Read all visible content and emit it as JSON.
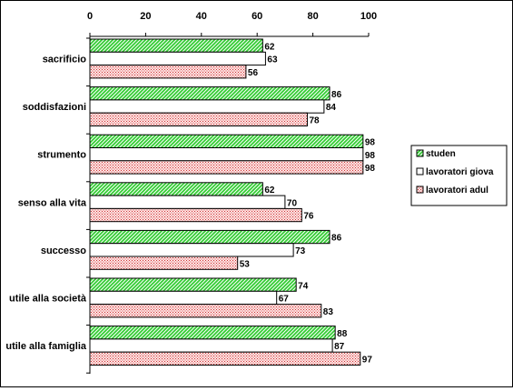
{
  "chart_data": {
    "type": "bar",
    "orientation": "horizontal",
    "title": "",
    "xlabel": "",
    "ylabel": "",
    "xlim": [
      0,
      100
    ],
    "x_ticks": [
      0,
      20,
      40,
      60,
      80,
      100
    ],
    "x_axis_position": "top",
    "grid": false,
    "legend_position": "right",
    "categories": [
      "sacrificio",
      "soddisfazioni",
      "strumento",
      "senso alla vita",
      "successo",
      "utile alla società",
      "utile alla famiglia"
    ],
    "series": [
      {
        "name": "studen",
        "values": [
          62,
          86,
          98,
          62,
          86,
          74,
          88
        ],
        "fill": "#33cc33",
        "pattern": "diagonal-hatch"
      },
      {
        "name": "lavoratori giova",
        "values": [
          63,
          84,
          98,
          70,
          73,
          67,
          87
        ],
        "fill": "#ffffff",
        "pattern": "none"
      },
      {
        "name": "lavoratori adul",
        "values": [
          56,
          78,
          98,
          76,
          53,
          83,
          97
        ],
        "fill": "#ff9999",
        "pattern": "dots"
      }
    ]
  }
}
